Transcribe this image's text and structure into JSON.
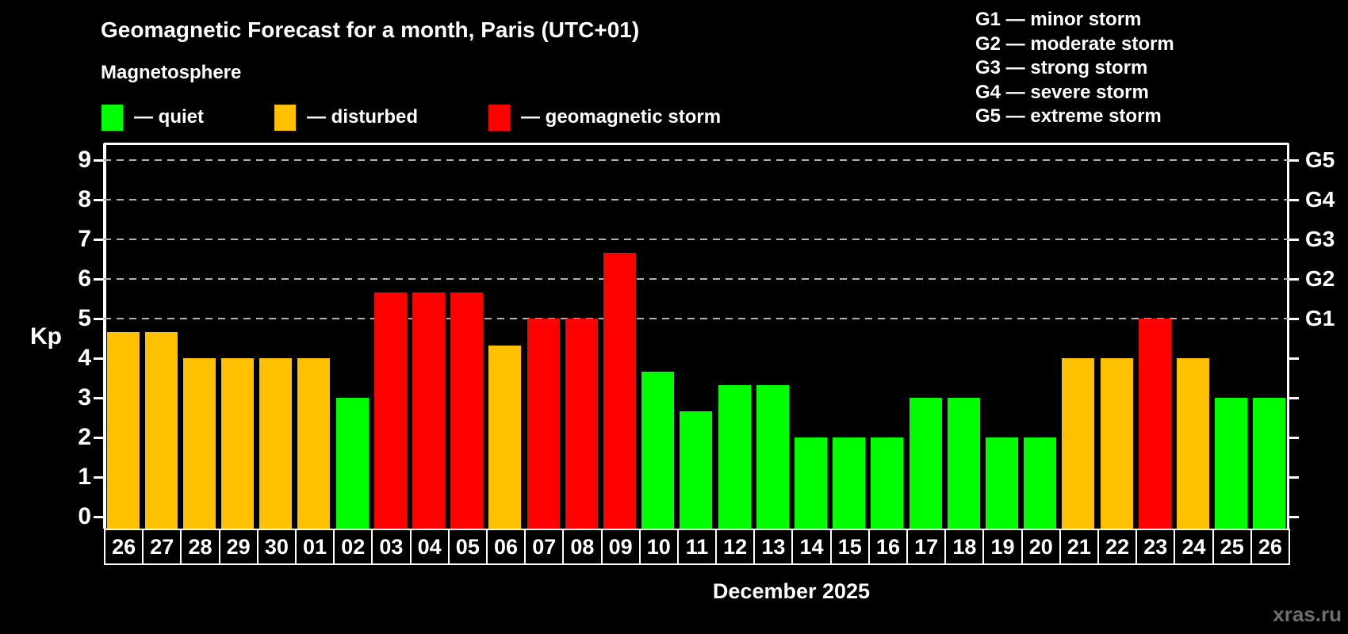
{
  "title": "Geomagnetic Forecast for a month, Paris (UTC+01)",
  "subtitle": "Magnetosphere",
  "legend": [
    {
      "key": "quiet",
      "label": "— quiet",
      "color": "#00ff00"
    },
    {
      "key": "disturbed",
      "label": "— disturbed",
      "color": "#ffc000"
    },
    {
      "key": "storm",
      "label": "— geomagnetic storm",
      "color": "#ff0000"
    }
  ],
  "storm_scale_legend": [
    "G1 — minor storm",
    "G2 — moderate storm",
    "G3 — strong storm",
    "G4 — severe storm",
    "G5 — extreme storm"
  ],
  "watermark": "xras.ru",
  "chart_data": {
    "type": "bar",
    "title": "Geomagnetic Forecast for a month, Paris (UTC+01)",
    "xlabel": "December 2025",
    "ylabel": "Kp",
    "ylim": [
      0,
      9.5
    ],
    "yticks": [
      0,
      1,
      2,
      3,
      4,
      5,
      6,
      7,
      8,
      9
    ],
    "gridlines_at": [
      5,
      6,
      7,
      8,
      9
    ],
    "grid": "dashed horizontal at Kp 5-9",
    "legend_position": "top",
    "right_axis": [
      {
        "label": "G1",
        "kp": 5
      },
      {
        "label": "G2",
        "kp": 6
      },
      {
        "label": "G3",
        "kp": 7
      },
      {
        "label": "G4",
        "kp": 8
      },
      {
        "label": "G5",
        "kp": 9
      }
    ],
    "categories": [
      "26",
      "27",
      "28",
      "29",
      "30",
      "01",
      "02",
      "03",
      "04",
      "05",
      "06",
      "07",
      "08",
      "09",
      "10",
      "11",
      "12",
      "13",
      "14",
      "15",
      "16",
      "17",
      "18",
      "19",
      "20",
      "21",
      "22",
      "23",
      "24",
      "25",
      "26"
    ],
    "values": [
      4.67,
      4.67,
      4,
      4,
      4,
      4,
      3,
      5.67,
      5.67,
      5.67,
      4.33,
      5,
      5,
      6.67,
      3.67,
      2.67,
      3.33,
      3.33,
      2,
      2,
      2,
      3,
      3,
      2,
      2,
      4,
      4,
      5,
      4,
      3,
      3
    ],
    "statuses": [
      "disturbed",
      "disturbed",
      "disturbed",
      "disturbed",
      "disturbed",
      "disturbed",
      "quiet",
      "storm",
      "storm",
      "storm",
      "disturbed",
      "storm",
      "storm",
      "storm",
      "quiet",
      "quiet",
      "quiet",
      "quiet",
      "quiet",
      "quiet",
      "quiet",
      "quiet",
      "quiet",
      "quiet",
      "quiet",
      "disturbed",
      "disturbed",
      "storm",
      "disturbed",
      "quiet",
      "quiet"
    ],
    "colors_by_status": {
      "quiet": "#00ff00",
      "disturbed": "#ffc000",
      "storm": "#ff0000"
    },
    "month_separator_at_slot": 5
  }
}
